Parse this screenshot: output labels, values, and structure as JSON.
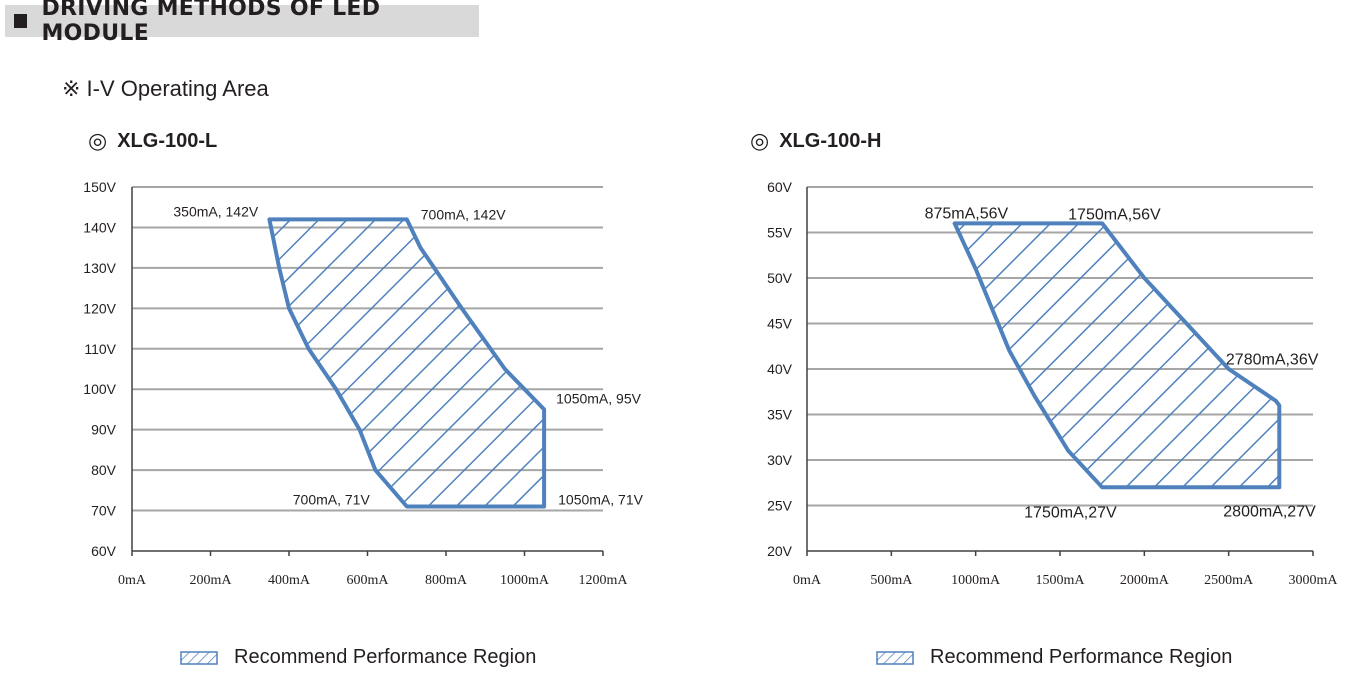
{
  "header": {
    "title": "DRIVING METHODS OF LED MODULE"
  },
  "subtitle": "※ I-V Operating Area",
  "charts": [
    {
      "model_mark": "◎",
      "model": "XLG-100-L",
      "legend": "Recommend Performance Region"
    },
    {
      "model_mark": "◎",
      "model": "XLG-100-H",
      "legend": "Recommend Performance Region"
    }
  ],
  "colors": {
    "region": "#4f81bd",
    "grid": "#a6a6a6",
    "axis": "#404040"
  },
  "chart_data": [
    {
      "type": "area",
      "title": "XLG-100-L",
      "x_ticks": [
        "0mA",
        "200mA",
        "400mA",
        "600mA",
        "800mA",
        "1000mA",
        "1200mA"
      ],
      "y_ticks": [
        "60V",
        "70V",
        "80V",
        "90V",
        "100V",
        "110V",
        "120V",
        "130V",
        "140V",
        "150V"
      ],
      "xlim": [
        0,
        1200
      ],
      "ylim": [
        60,
        150
      ],
      "grid": "horizontal",
      "series": [
        {
          "name": "Recommend Performance Region",
          "x": [
            350,
            700,
            735,
            840,
            950,
            1050,
            1050,
            700,
            620,
            580,
            520,
            450,
            400,
            375,
            350
          ],
          "y": [
            142,
            142,
            135,
            120,
            105,
            95,
            71,
            71,
            80,
            90,
            100,
            110,
            120,
            130,
            142
          ]
        }
      ],
      "annotations": [
        {
          "x": 350,
          "y": 142,
          "text": "350mA, 142V"
        },
        {
          "x": 700,
          "y": 142,
          "text": "700mA, 142V"
        },
        {
          "x": 1050,
          "y": 95,
          "text": "1050mA, 95V"
        },
        {
          "x": 700,
          "y": 71,
          "text": "700mA, 71V"
        },
        {
          "x": 1050,
          "y": 71,
          "text": "1050mA, 71V"
        }
      ]
    },
    {
      "type": "area",
      "title": "XLG-100-H",
      "x_ticks": [
        "0mA",
        "500mA",
        "1000mA",
        "1500mA",
        "2000mA",
        "2500mA",
        "3000mA"
      ],
      "y_ticks": [
        "20V",
        "25V",
        "30V",
        "35V",
        "40V",
        "45V",
        "50V",
        "55V",
        "60V"
      ],
      "xlim": [
        0,
        3000
      ],
      "ylim": [
        20,
        60
      ],
      "grid": "horizontal",
      "series": [
        {
          "name": "Recommend Performance Region",
          "x": [
            875,
            1750,
            2000,
            2250,
            2500,
            2780,
            2800,
            2800,
            1750,
            1550,
            1350,
            1200,
            1100,
            1000,
            875
          ],
          "y": [
            56,
            56,
            50,
            45,
            40,
            36.5,
            36,
            27,
            27,
            31,
            37,
            42,
            46.5,
            51,
            56
          ]
        }
      ],
      "annotations": [
        {
          "x": 875,
          "y": 56,
          "text": "875mA,56V"
        },
        {
          "x": 1750,
          "y": 56,
          "text": "1750mA,56V"
        },
        {
          "x": 2780,
          "y": 36,
          "text": "2780mA,36V"
        },
        {
          "x": 1750,
          "y": 27,
          "text": "1750mA,27V"
        },
        {
          "x": 2800,
          "y": 27,
          "text": "2800mA,27V"
        }
      ]
    }
  ]
}
